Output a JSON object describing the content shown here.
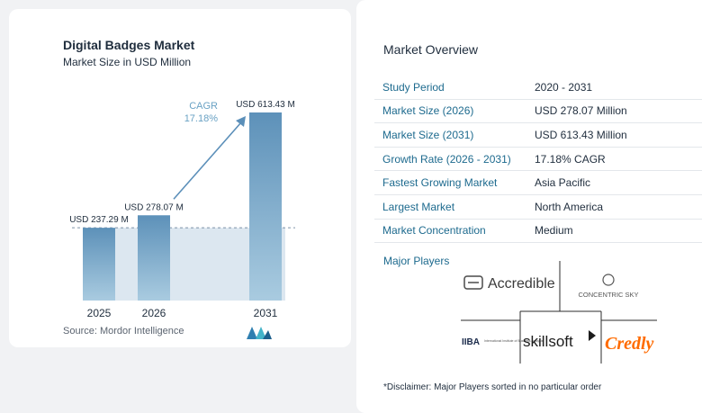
{
  "chart": {
    "title": "Digital Badges Market",
    "subtitle": "Market Size in USD Million",
    "source": "Source:  Mordor Intelligence",
    "cagr_label": "CAGR",
    "cagr_value": "17.18%"
  },
  "chart_data": {
    "type": "bar",
    "title": "Digital Badges Market",
    "subtitle": "Market Size in USD Million",
    "categories": [
      "2025",
      "2026",
      "2031"
    ],
    "values": [
      237.29,
      278.07,
      613.43
    ],
    "data_labels": [
      "USD 237.29 M",
      "USD 278.07 M",
      "USD 613.43 M"
    ],
    "ylim": [
      0,
      660
    ],
    "grid": false,
    "colors": {
      "bar": "#6d9fc3",
      "band": "#dce7f0",
      "arrow": "#5b8fb9",
      "cagr": "#6aa2c4"
    }
  },
  "overview": {
    "title": "Market Overview",
    "rows": [
      {
        "key": "Study Period",
        "value": "2020 - 2031"
      },
      {
        "key": "Market Size (2026)",
        "value": "USD 278.07 Million"
      },
      {
        "key": "Market Size (2031)",
        "value": "USD 613.43 Million"
      },
      {
        "key": "Growth Rate (2026 - 2031)",
        "value": "17.18% CAGR"
      },
      {
        "key": "Fastest Growing Market",
        "value": "Asia Pacific"
      },
      {
        "key": "Largest Market",
        "value": "North America"
      },
      {
        "key": "Market Concentration",
        "value": "Medium"
      }
    ],
    "players_title": "Major Players",
    "players": {
      "accredible": "Accredible",
      "concentric": "CONCENTRIC SKY",
      "iiba": "IIBA",
      "iiba_sub": "International Institute of Business Analysis",
      "skillsoft": "skillsoft",
      "credly": "Credly"
    },
    "disclaimer": "*Disclaimer: Major Players sorted in no particular order"
  }
}
